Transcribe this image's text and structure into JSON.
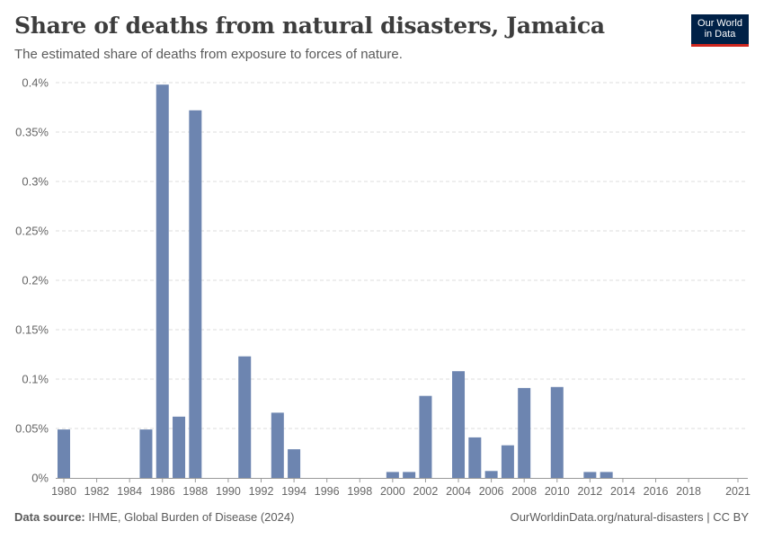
{
  "header": {
    "title": "Share of deaths from natural disasters, Jamaica",
    "subtitle": "The estimated share of deaths from exposure to forces of nature."
  },
  "logo": {
    "line1": "Our World",
    "line2": "in Data"
  },
  "footer": {
    "source_label": "Data source:",
    "source_text": "IHME, Global Burden of Disease (2024)",
    "link_text": "OurWorldinData.org/natural-disasters | CC BY"
  },
  "colors": {
    "bar": "#6d85b0",
    "grid": "#dddddd",
    "axis": "#999999"
  },
  "chart_data": {
    "type": "bar",
    "title": "Share of deaths from natural disasters, Jamaica",
    "xlabel": "",
    "ylabel": "",
    "x_range": [
      1980,
      2021
    ],
    "ylim": [
      0,
      0.4
    ],
    "y_unit": "%",
    "y_ticks": [
      {
        "value": 0,
        "label": "0%"
      },
      {
        "value": 0.05,
        "label": "0.05%"
      },
      {
        "value": 0.1,
        "label": "0.1%"
      },
      {
        "value": 0.15,
        "label": "0.15%"
      },
      {
        "value": 0.2,
        "label": "0.2%"
      },
      {
        "value": 0.25,
        "label": "0.25%"
      },
      {
        "value": 0.3,
        "label": "0.3%"
      },
      {
        "value": 0.35,
        "label": "0.35%"
      },
      {
        "value": 0.4,
        "label": "0.4%"
      }
    ],
    "x_ticks": [
      1980,
      1982,
      1984,
      1986,
      1988,
      1990,
      1992,
      1994,
      1996,
      1998,
      2000,
      2002,
      2004,
      2006,
      2008,
      2010,
      2012,
      2014,
      2016,
      2018,
      2021
    ],
    "categories": [
      1980,
      1985,
      1986,
      1987,
      1988,
      1991,
      1993,
      1994,
      2000,
      2001,
      2002,
      2004,
      2005,
      2006,
      2007,
      2008,
      2010,
      2012,
      2013
    ],
    "values": [
      0.049,
      0.049,
      0.398,
      0.062,
      0.372,
      0.123,
      0.066,
      0.029,
      0.006,
      0.006,
      0.083,
      0.108,
      0.041,
      0.007,
      0.033,
      0.091,
      0.092,
      0.006,
      0.006
    ]
  }
}
